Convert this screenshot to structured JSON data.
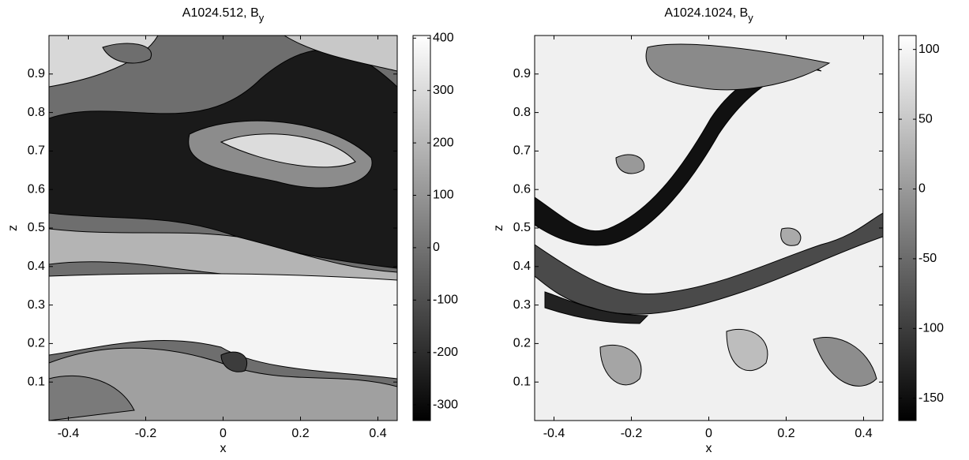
{
  "chart_data": [
    {
      "type": "contour",
      "title": "A1024.512, B",
      "title_subscript": "y",
      "xlabel": "x",
      "ylabel": "z",
      "xlim": [
        -0.45,
        0.45
      ],
      "ylim": [
        0,
        1
      ],
      "xticks": [
        -0.4,
        -0.2,
        0,
        0.2,
        0.4
      ],
      "yticks": [
        0.1,
        0.2,
        0.3,
        0.4,
        0.5,
        0.6,
        0.7,
        0.8,
        0.9
      ],
      "colormap": "gray",
      "clim": [
        -330,
        405
      ],
      "cticks": [
        -300,
        -200,
        -100,
        0,
        100,
        200,
        300,
        400
      ]
    },
    {
      "type": "contour",
      "title": "A1024.1024, B",
      "title_subscript": "y",
      "xlabel": "x",
      "ylabel": "z",
      "xlim": [
        -0.45,
        0.45
      ],
      "ylim": [
        0,
        1
      ],
      "xticks": [
        -0.4,
        -0.2,
        0,
        0.2,
        0.4
      ],
      "yticks": [
        0.1,
        0.2,
        0.3,
        0.4,
        0.5,
        0.6,
        0.7,
        0.8,
        0.9
      ],
      "colormap": "gray",
      "clim": [
        -166,
        110
      ],
      "cticks": [
        -150,
        -100,
        -50,
        0,
        50,
        100
      ]
    }
  ]
}
